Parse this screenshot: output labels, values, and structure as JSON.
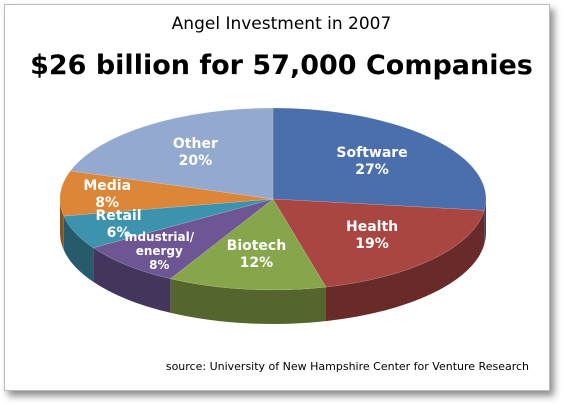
{
  "chart_data": {
    "type": "pie3d",
    "title": "Angel Investment in 2007",
    "subtitle": "$26 billion for 57,000 Companies",
    "source": "source: University of New Hampshire  Center for Venture Research",
    "categories": [
      "Software",
      "Health",
      "Biotech",
      "Industrial/ energy",
      "Retail",
      "Media",
      "Other"
    ],
    "values": [
      27,
      19,
      12,
      8,
      6,
      8,
      20
    ],
    "value_labels": [
      "27%",
      "19%",
      "12%",
      "8%",
      "6%",
      "8%",
      "20%"
    ],
    "colors": [
      "#4a6fac",
      "#a94642",
      "#87a54a",
      "#6e5594",
      "#3d93ad",
      "#db8638",
      "#93a9cf"
    ]
  }
}
